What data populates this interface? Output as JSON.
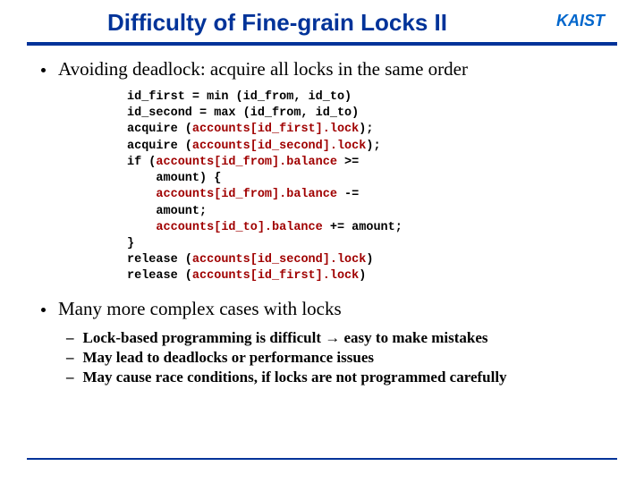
{
  "title": "Difficulty of Fine-grain Locks II",
  "logo_text": "KAIST",
  "bullet1": "Avoiding deadlock: acquire all locks in the same order",
  "code": {
    "l1a": "id_first = min (id_from, id_to)",
    "l2a": "id_second = max (id_from, id_to)",
    "l3a": "acquire (",
    "l3b": "accounts[id_first].lock",
    "l3c": ");",
    "l4a": "acquire (",
    "l4b": "accounts[id_second].lock",
    "l4c": ");",
    "l5a": "if (",
    "l5b": "accounts[id_from].balance",
    "l5c": " >=",
    "l6a": "    amount) {",
    "l7a": "    ",
    "l7b": "accounts[id_from].balance",
    "l7c": " -=",
    "l8a": "    amount;",
    "l9a": "    ",
    "l9b": "accounts[id_to].balance",
    "l9c": " += amount;",
    "l10a": "}",
    "l11a": "release (",
    "l11b": "accounts[id_second].lock",
    "l11c": ")",
    "l12a": "release (",
    "l12b": "accounts[id_first].lock",
    "l12c": ")"
  },
  "bullet2": "Many more complex cases with locks",
  "sub1a": "Lock-based programming is difficult ",
  "sub1b": "→",
  "sub1c": " easy to make mistakes",
  "sub2": "May lead to deadlocks or performance issues",
  "sub3": "May cause race conditions, if locks are not programmed carefully",
  "colors": {
    "brand": "#003399",
    "keyword": "#a00000"
  }
}
